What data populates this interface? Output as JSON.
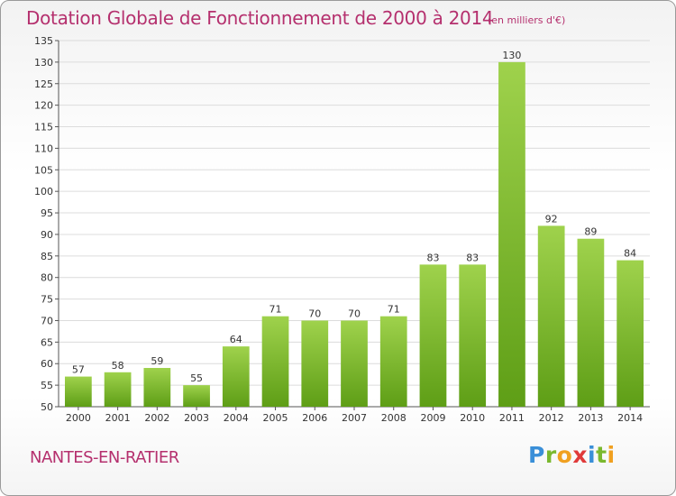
{
  "title": "Dotation Globale de Fonctionnement de 2000 à 2014",
  "unit": "(en milliers d'€)",
  "commune": "NANTES-EN-RATIER",
  "brand": {
    "text": "Proxiti",
    "letters": [
      {
        "ch": "P",
        "color": "#3a8fd8"
      },
      {
        "ch": "r",
        "color": "#7ab82e"
      },
      {
        "ch": "o",
        "color": "#f0a020"
      },
      {
        "ch": "x",
        "color": "#e03a3a"
      },
      {
        "ch": "i",
        "color": "#3a8fd8"
      },
      {
        "ch": "t",
        "color": "#7ab82e"
      },
      {
        "ch": "i",
        "color": "#f0a020"
      }
    ]
  },
  "colors": {
    "title": "#b5306e",
    "bar_top": "#9fd24c",
    "bar_bottom": "#5e9e16",
    "grid": "#dcdcdc",
    "axis": "#555555"
  },
  "chart_data": {
    "type": "bar",
    "title": "Dotation Globale de Fonctionnement de 2000 à 2014",
    "subtitle": "(en milliers d'€)",
    "categories": [
      "2000",
      "2001",
      "2002",
      "2003",
      "2004",
      "2005",
      "2006",
      "2007",
      "2008",
      "2009",
      "2010",
      "2011",
      "2012",
      "2013",
      "2014"
    ],
    "values": [
      57,
      58,
      59,
      55,
      64,
      71,
      70,
      70,
      71,
      83,
      83,
      130,
      92,
      89,
      84
    ],
    "ylim": [
      50,
      135
    ],
    "ytick_step": 5,
    "grid": true,
    "legend": "none"
  }
}
